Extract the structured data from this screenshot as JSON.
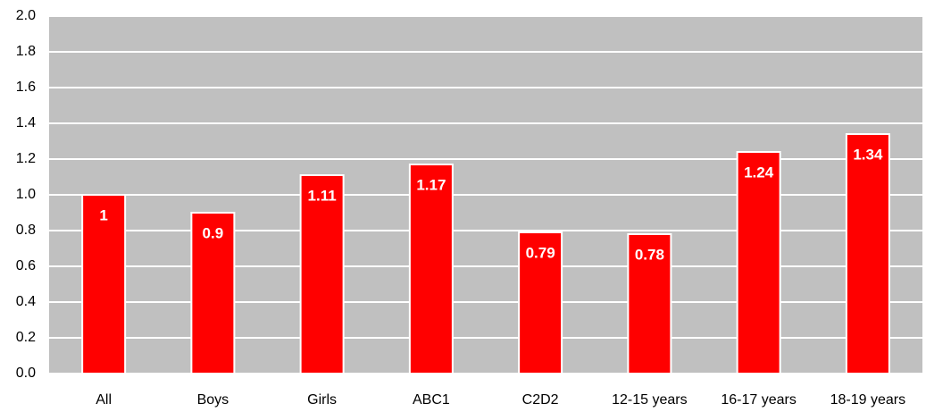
{
  "chart_data": {
    "type": "bar",
    "categories": [
      "All",
      "Boys",
      "Girls",
      "ABC1",
      "C2D2",
      "12-15 years",
      "16-17 years",
      "18-19 years"
    ],
    "values": [
      1,
      0.9,
      1.11,
      1.17,
      0.79,
      0.78,
      1.24,
      1.34
    ],
    "color": "#ff0000",
    "ylim": [
      0,
      2
    ],
    "yticks": [
      {
        "value": 0,
        "label": "0.0"
      },
      0.2,
      0.4,
      0.6,
      0.8,
      {
        "value": 1,
        "label": "1.0"
      },
      1.2,
      1.4,
      1.6,
      1.8,
      {
        "value": 2,
        "label": "2.0"
      }
    ],
    "grid": true
  }
}
